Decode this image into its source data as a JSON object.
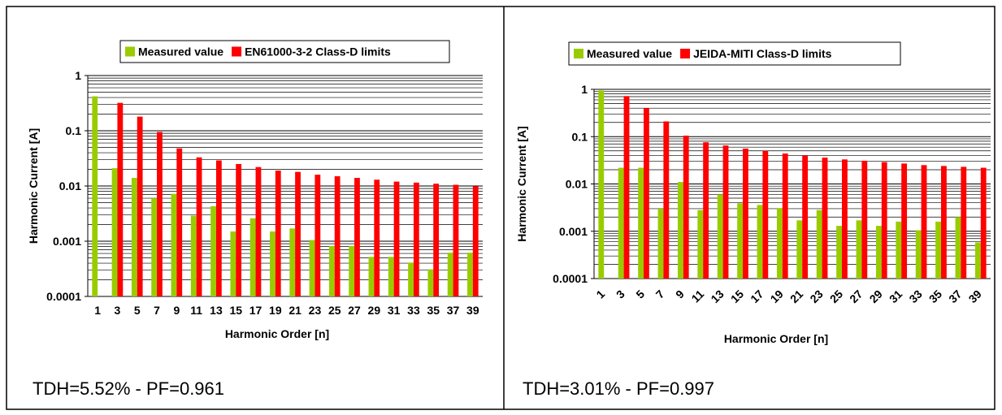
{
  "panels": [
    {
      "caption": "TDH=5.52% - PF=0.961"
    },
    {
      "caption": "TDH=3.01% - PF=0.997"
    }
  ],
  "chart_data": [
    {
      "type": "bar",
      "title": "",
      "xlabel": "Harmonic Order [n]",
      "ylabel": "Harmonic Current [A]",
      "yscale": "log",
      "ylim": [
        0.0001,
        1
      ],
      "yticks": [
        "0.0001",
        "0.001",
        "0.01",
        "0.1",
        "1"
      ],
      "grid": true,
      "legend_position": "top",
      "categories": [
        "1",
        "3",
        "5",
        "7",
        "9",
        "11",
        "13",
        "15",
        "17",
        "19",
        "21",
        "23",
        "25",
        "27",
        "29",
        "31",
        "33",
        "35",
        "37",
        "39"
      ],
      "series": [
        {
          "name": "Measured value",
          "color": "#99cc00",
          "values": [
            0.42,
            0.021,
            0.014,
            0.006,
            0.0072,
            0.0029,
            0.0043,
            0.0015,
            0.0026,
            0.0015,
            0.0017,
            0.00105,
            0.00082,
            0.00082,
            0.00052,
            0.00052,
            0.00041,
            0.00031,
            0.00062,
            0.00062
          ]
        },
        {
          "name": "EN61000-3-2 Class-D limits",
          "color": "#ff0000",
          "values": [
            null,
            0.32,
            0.18,
            0.095,
            0.048,
            0.033,
            0.029,
            0.025,
            0.022,
            0.019,
            0.018,
            0.016,
            0.015,
            0.014,
            0.013,
            0.012,
            0.0115,
            0.011,
            0.0105,
            0.0099
          ]
        }
      ]
    },
    {
      "type": "bar",
      "title": "",
      "xlabel": "Harmonic Order [n]",
      "ylabel": "Harmonic Current [A]",
      "yscale": "log",
      "ylim": [
        0.0001,
        1
      ],
      "yticks": [
        "0.0001",
        "0.001",
        "0.01",
        "0.1",
        "1"
      ],
      "grid": true,
      "legend_position": "top",
      "x_tick_rotation": "diagonal",
      "categories": [
        "1",
        "3",
        "5",
        "7",
        "9",
        "11",
        "13",
        "15",
        "17",
        "19",
        "21",
        "23",
        "25",
        "27",
        "29",
        "31",
        "33",
        "35",
        "37",
        "39"
      ],
      "series": [
        {
          "name": "Measured value",
          "color": "#99cc00",
          "values": [
            0.95,
            0.022,
            0.022,
            0.003,
            0.011,
            0.0028,
            0.006,
            0.0039,
            0.0036,
            0.0031,
            0.0017,
            0.0028,
            0.0013,
            0.0017,
            0.0013,
            0.0016,
            0.00105,
            0.0016,
            0.002,
            0.00058
          ]
        },
        {
          "name": "JEIDA-MITI Class-D limits",
          "color": "#ff0000",
          "values": [
            null,
            0.72,
            0.4,
            0.21,
            0.105,
            0.076,
            0.065,
            0.056,
            0.05,
            0.044,
            0.04,
            0.036,
            0.033,
            0.031,
            0.029,
            0.027,
            0.025,
            0.024,
            0.023,
            0.022
          ]
        }
      ]
    }
  ]
}
